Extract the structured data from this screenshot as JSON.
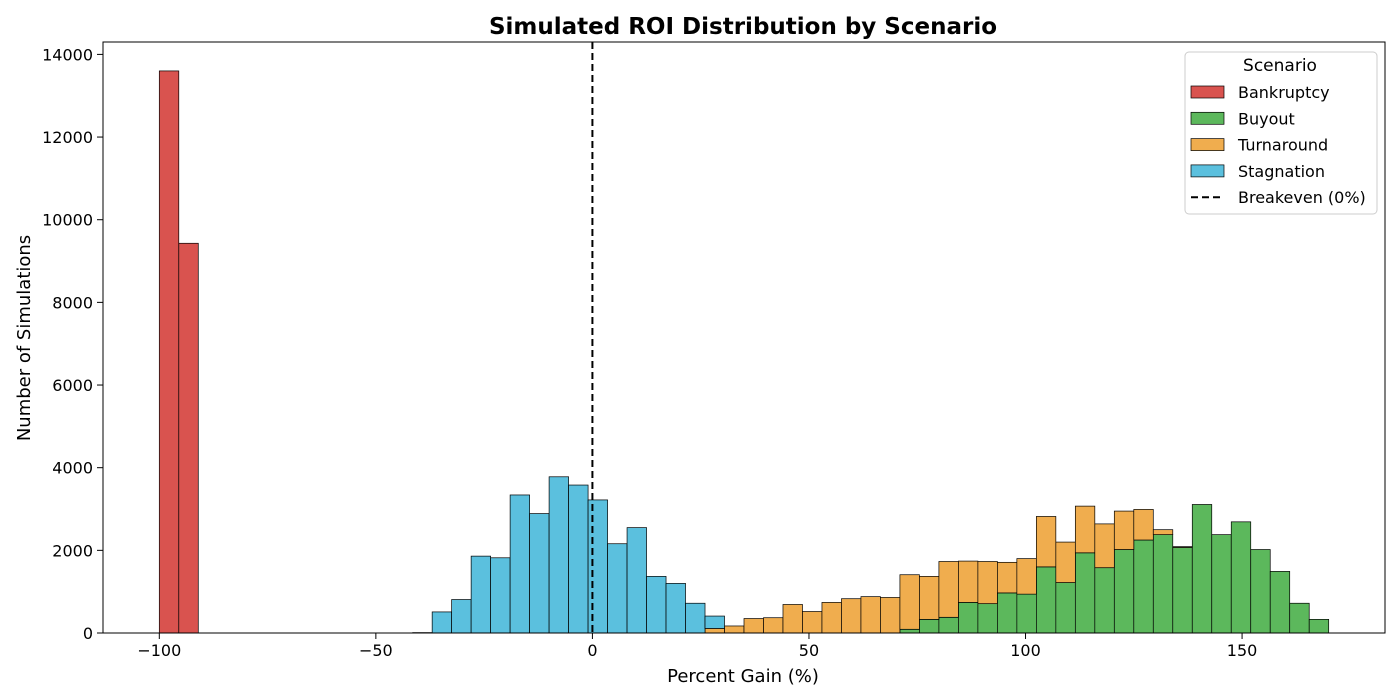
{
  "chart_data": {
    "type": "bar",
    "title": "Simulated ROI Distribution by Scenario",
    "xlabel": "Percent Gain (%)",
    "ylabel": "Number of Simulations",
    "xlim": [
      -113,
      183
    ],
    "ylim": [
      0,
      14300
    ],
    "xticks": [
      -100,
      -50,
      0,
      50,
      100,
      150
    ],
    "xtick_labels": [
      "−100",
      "−50",
      "0",
      "50",
      "100",
      "150"
    ],
    "yticks": [
      0,
      2000,
      4000,
      6000,
      8000,
      10000,
      12000,
      14000
    ],
    "ytick_labels": [
      "0",
      "2000",
      "4000",
      "6000",
      "8000",
      "10000",
      "12000",
      "14000"
    ],
    "bin_width": 4.5,
    "stacked": true,
    "grid": false,
    "legend": {
      "title": "Scenario",
      "position": "top-right",
      "entries": [
        {
          "label": "Bankruptcy",
          "type": "patch",
          "color": "#d9534f"
        },
        {
          "label": "Buyout",
          "type": "patch",
          "color": "#5cb85c"
        },
        {
          "label": "Turnaround",
          "type": "patch",
          "color": "#f0ad4e"
        },
        {
          "label": "Stagnation",
          "type": "patch",
          "color": "#5bc0de"
        },
        {
          "label": "Breakeven (0%)",
          "type": "dashed-line",
          "color": "#000000"
        }
      ]
    },
    "reference_line": {
      "x": 0,
      "style": "dashed",
      "color": "#000000",
      "label": "Breakeven (0%)"
    },
    "bin_edges": [
      -100.0,
      -95.5,
      -91.0,
      -86.5,
      -82.0,
      -77.5,
      -73.0,
      -68.5,
      -64.0,
      -59.5,
      -55.0,
      -50.5,
      -46.0,
      -41.5,
      -37.0,
      -32.5,
      -28.0,
      -23.5,
      -19.0,
      -14.5,
      -10.0,
      -5.5,
      -1.0,
      3.5,
      8.0,
      12.5,
      17.0,
      21.5,
      26.0,
      30.5,
      35.0,
      39.5,
      44.0,
      48.5,
      53.0,
      57.5,
      62.0,
      66.5,
      71.0,
      75.5,
      80.0,
      84.5,
      89.0,
      93.5,
      98.0,
      102.5,
      107.0,
      111.5,
      116.0,
      120.5,
      125.0,
      129.5,
      134.0,
      138.5,
      143.0,
      147.5,
      152.0,
      156.5,
      161.0,
      165.5,
      170.0
    ],
    "series": [
      {
        "name": "Bankruptcy",
        "color": "#d9534f",
        "values": [
          13600,
          9430,
          0,
          0,
          0,
          0,
          0,
          0,
          0,
          0,
          0,
          0,
          0,
          0,
          0,
          0,
          0,
          0,
          0,
          0,
          0,
          0,
          0,
          0,
          0,
          0,
          0,
          0,
          0,
          0,
          0,
          0,
          0,
          0,
          0,
          0,
          0,
          0,
          0,
          0,
          0,
          0,
          0,
          0,
          0,
          0,
          0,
          0,
          0,
          0,
          0,
          0,
          0,
          0,
          0,
          0,
          0,
          0,
          0,
          0
        ]
      },
      {
        "name": "Buyout",
        "color": "#5cb85c",
        "values": [
          0,
          0,
          0,
          0,
          0,
          0,
          0,
          0,
          0,
          0,
          0,
          0,
          0,
          0,
          0,
          0,
          0,
          0,
          0,
          0,
          0,
          0,
          0,
          0,
          0,
          0,
          0,
          0,
          0,
          0,
          0,
          0,
          0,
          0,
          0,
          0,
          0,
          0,
          90,
          330,
          380,
          740,
          710,
          970,
          940,
          1600,
          1220,
          1940,
          1580,
          2020,
          2250,
          2380,
          2070,
          3110,
          2380,
          2690,
          2020,
          1490,
          720,
          330
        ]
      },
      {
        "name": "Turnaround",
        "color": "#f0ad4e",
        "values": [
          0,
          0,
          0,
          0,
          0,
          0,
          0,
          0,
          0,
          0,
          0,
          0,
          0,
          0,
          0,
          0,
          0,
          0,
          0,
          0,
          0,
          0,
          0,
          0,
          0,
          0,
          0,
          0,
          110,
          170,
          350,
          370,
          690,
          520,
          740,
          830,
          880,
          860,
          1320,
          1040,
          1350,
          1000,
          1020,
          740,
          860,
          1220,
          980,
          1130,
          1060,
          930,
          740,
          120,
          20,
          0,
          0,
          0,
          0,
          0,
          0,
          0
        ]
      },
      {
        "name": "Stagnation",
        "color": "#5bc0de",
        "values": [
          0,
          0,
          0,
          0,
          0,
          0,
          0,
          0,
          0,
          0,
          0,
          0,
          0,
          10,
          510,
          810,
          1860,
          1820,
          3340,
          2890,
          3780,
          3580,
          3220,
          2160,
          2550,
          1370,
          1200,
          720,
          300,
          0,
          0,
          0,
          0,
          0,
          0,
          0,
          0,
          0,
          0,
          0,
          0,
          0,
          0,
          0,
          0,
          0,
          0,
          0,
          0,
          0,
          0,
          0,
          0,
          0,
          0,
          0,
          0,
          0,
          0,
          0
        ]
      }
    ]
  }
}
